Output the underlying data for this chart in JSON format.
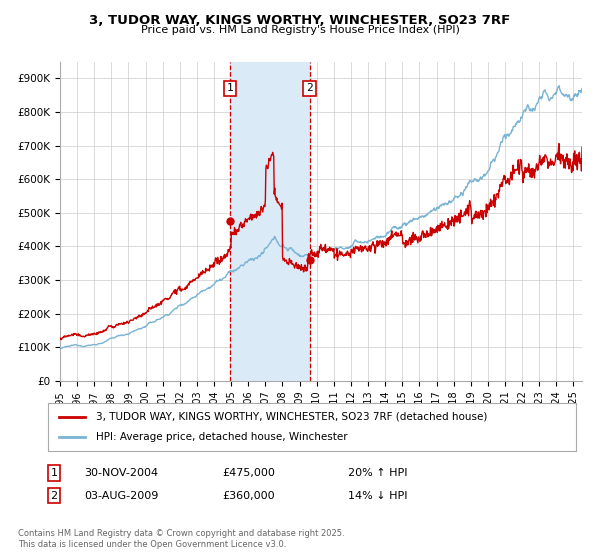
{
  "title_line1": "3, TUDOR WAY, KINGS WORTHY, WINCHESTER, SO23 7RF",
  "title_line2": "Price paid vs. HM Land Registry's House Price Index (HPI)",
  "ytick_labels": [
    "£0",
    "£100K",
    "£200K",
    "£300K",
    "£400K",
    "£500K",
    "£600K",
    "£700K",
    "£800K",
    "£900K"
  ],
  "ytick_values": [
    0,
    100000,
    200000,
    300000,
    400000,
    500000,
    600000,
    700000,
    800000,
    900000
  ],
  "ylim": [
    0,
    950000
  ],
  "xlim_start": 1995.0,
  "xlim_end": 2025.5,
  "hpi_color": "#7ab3d4",
  "price_color": "#cc0000",
  "sale1_date": 2004.92,
  "sale1_price": 475000,
  "sale1_label": "1",
  "sale2_date": 2009.58,
  "sale2_price": 360000,
  "sale2_label": "2",
  "shade_color": "#daeaf7",
  "dashed_color": "#cc0000",
  "legend_price_label": "3, TUDOR WAY, KINGS WORTHY, WINCHESTER, SO23 7RF (detached house)",
  "legend_hpi_label": "HPI: Average price, detached house, Winchester",
  "ann1_box": "1",
  "ann1_date": "30-NOV-2004",
  "ann1_price": "£475,000",
  "ann1_hpi": "20% ↑ HPI",
  "ann2_box": "2",
  "ann2_date": "03-AUG-2009",
  "ann2_price": "£360,000",
  "ann2_hpi": "14% ↓ HPI",
  "footnote": "Contains HM Land Registry data © Crown copyright and database right 2025.\nThis data is licensed under the Open Government Licence v3.0.",
  "background_color": "#ffffff",
  "grid_color": "#cccccc"
}
